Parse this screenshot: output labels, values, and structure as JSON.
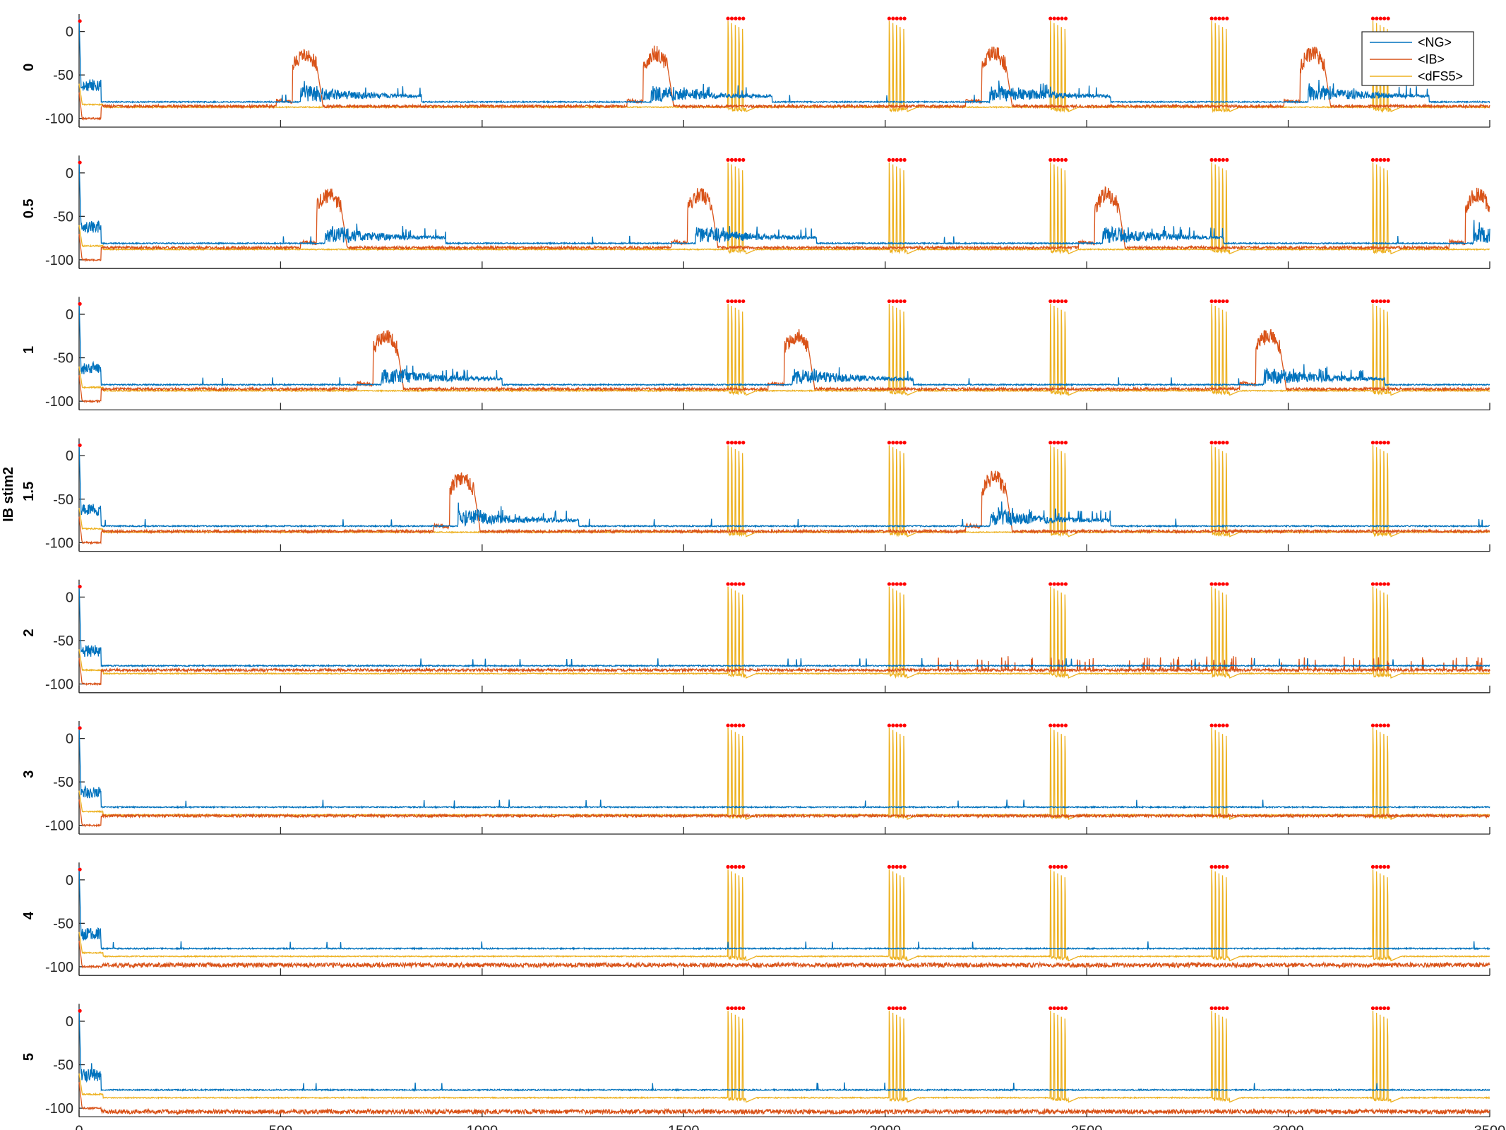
{
  "chart_data": {
    "type": "line",
    "ylabel": "IB stim2",
    "x_ticks": [
      "0",
      "500",
      "1000",
      "1500",
      "2000",
      "2500",
      "3000",
      "3500"
    ],
    "xlim": [
      0,
      3500
    ],
    "ylim": [
      -110,
      20
    ],
    "y_ticks": [
      "0",
      "-50",
      "-100"
    ],
    "legend": {
      "entries": [
        "<NG>",
        "<IB>",
        "<dFS5>"
      ],
      "colors": [
        "#0072BD",
        "#D95319",
        "#EDB120"
      ],
      "placement": "top-right"
    },
    "series": [
      {
        "name": "<NG>",
        "color": "#0072BD"
      },
      {
        "name": "<IB>",
        "color": "#D95319"
      },
      {
        "name": "<dFS5>",
        "color": "#EDB120"
      }
    ],
    "stim_train_starts": [
      1610,
      2010,
      2410,
      2810,
      3210
    ],
    "stim_marker_color": "#FF0000",
    "panels": [
      {
        "label": "0",
        "ib_bursts": [
          [
            530,
            60
          ],
          [
            1400,
            60
          ],
          [
            2240,
            60
          ],
          [
            3030,
            60
          ]
        ],
        "ng_rest": -81,
        "ib_rest": -86,
        "fs_rest": -87
      },
      {
        "label": "0.5",
        "ib_bursts": [
          [
            590,
            60
          ],
          [
            1510,
            60
          ],
          [
            2520,
            60
          ],
          [
            3440,
            60
          ]
        ],
        "ng_rest": -81,
        "ib_rest": -86,
        "fs_rest": -88
      },
      {
        "label": "1",
        "ib_bursts": [
          [
            730,
            60
          ],
          [
            1750,
            60
          ],
          [
            2920,
            60
          ]
        ],
        "ng_rest": -81,
        "ib_rest": -86,
        "fs_rest": -88
      },
      {
        "label": "1.5",
        "ib_bursts": [
          [
            920,
            60
          ],
          [
            2240,
            60
          ]
        ],
        "ng_rest": -81,
        "ib_rest": -87,
        "fs_rest": -88
      },
      {
        "label": "2",
        "ib_bursts": [],
        "ng_rest": -79,
        "ib_rest": -84,
        "fs_rest": -88
      },
      {
        "label": "3",
        "ib_bursts": [],
        "ng_rest": -79,
        "ib_rest": -89,
        "fs_rest": -88
      },
      {
        "label": "4",
        "ib_bursts": [],
        "ng_rest": -79,
        "ib_rest": -98,
        "fs_rest": -88
      },
      {
        "label": "5",
        "ib_bursts": [],
        "ng_rest": -79,
        "ib_rest": -104,
        "fs_rest": -88
      }
    ]
  }
}
